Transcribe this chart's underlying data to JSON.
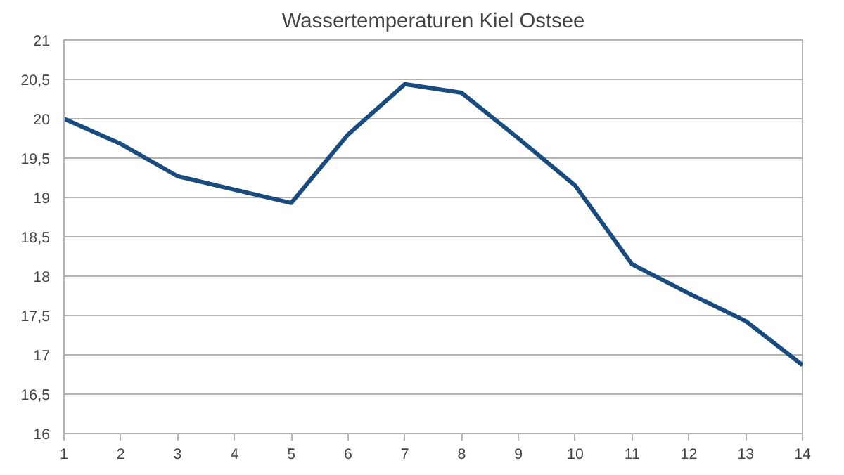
{
  "chart_data": {
    "type": "line",
    "title": "Wassertemperaturen Kiel Ostsee",
    "x": [
      1,
      2,
      3,
      4,
      5,
      6,
      7,
      8,
      9,
      10,
      11,
      12,
      13,
      14
    ],
    "series": [
      {
        "color": "#1a4b7f",
        "values": [
          20.0,
          19.68,
          19.27,
          19.1,
          18.93,
          19.8,
          20.44,
          20.33,
          19.75,
          19.15,
          18.15,
          17.78,
          17.43,
          16.87
        ]
      }
    ],
    "xlim": [
      1,
      14
    ],
    "xticks": [
      1,
      2,
      3,
      4,
      5,
      6,
      7,
      8,
      9,
      10,
      11,
      12,
      13,
      14
    ],
    "ylim": [
      16,
      21
    ],
    "yticks": [
      16,
      {
        "value": 16.5,
        "label": "16,5"
      },
      17,
      {
        "value": 17.5,
        "label": "17,5"
      },
      18,
      {
        "value": 18.5,
        "label": "18,5"
      },
      19,
      {
        "value": 19.5,
        "label": "19,5"
      },
      20,
      {
        "value": 20.5,
        "label": "20,5"
      },
      21
    ],
    "grid": "y",
    "marker": "none",
    "line_style": "solid"
  }
}
